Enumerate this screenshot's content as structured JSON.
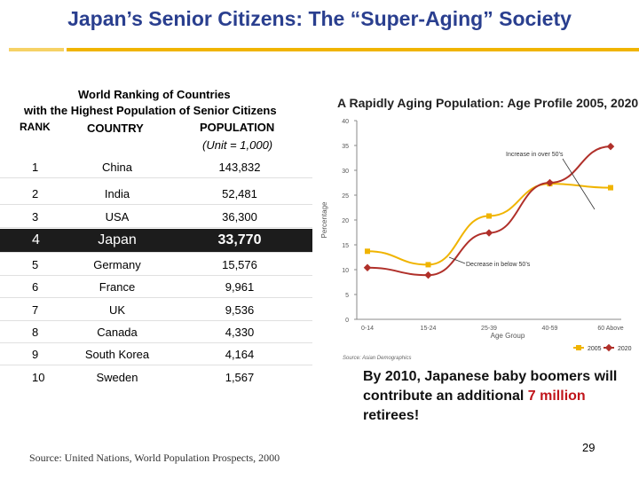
{
  "title": "Japan’s Senior Citizens: The “Super-Aging” Society",
  "ranking": {
    "heading_line1": "World Ranking of Countries",
    "heading_line2": "with the Highest Population of Senior Citizens",
    "col_rank": "RANK",
    "col_country": "COUNTRY",
    "col_population": "POPULATION",
    "unit": "(Unit = 1,000)",
    "rows": [
      {
        "rank": "1",
        "country": "China",
        "population": "143,832"
      },
      {
        "rank": "2",
        "country": "India",
        "population": "52,481"
      },
      {
        "rank": "3",
        "country": "USA",
        "population": "36,300"
      },
      {
        "rank": "4",
        "country": "Japan",
        "population": "33,770"
      },
      {
        "rank": "5",
        "country": "Germany",
        "population": "15,576"
      },
      {
        "rank": "6",
        "country": "France",
        "population": "9,961"
      },
      {
        "rank": "7",
        "country": "UK",
        "population": "9,536"
      },
      {
        "rank": "8",
        "country": "Canada",
        "population": "4,330"
      },
      {
        "rank": "9",
        "country": "South Korea",
        "population": "4,164"
      },
      {
        "rank": "10",
        "country": "Sweden",
        "population": "1,567"
      }
    ],
    "source": "Source: United Nations, World Population Prospects, 2000"
  },
  "chart_data": {
    "type": "line",
    "title": "A Rapidly Aging Population: Age Profile 2005, 2020",
    "xlabel": "Age Group",
    "ylabel": "Percentage",
    "categories": [
      "0-14",
      "15-24",
      "25-39",
      "40-59",
      "60 Above"
    ],
    "ylim": [
      0,
      40
    ],
    "yticks": [
      "0",
      "5",
      "10",
      "15",
      "20",
      "25",
      "30",
      "35",
      "40"
    ],
    "series": [
      {
        "name": "2005",
        "color": "#f0b400",
        "values": [
          13.7,
          11.0,
          20.8,
          27.3,
          26.5
        ]
      },
      {
        "name": "2020",
        "color": "#b0302a",
        "values": [
          10.4,
          8.9,
          17.4,
          27.5,
          34.8
        ]
      }
    ],
    "annotations": [
      "Increase in over 50’s",
      "Decrease in below 50’s"
    ],
    "source": "Source: Asian Demographics",
    "legend": "bottom-right",
    "grid": false
  },
  "caption": {
    "part1": "By 2010, Japanese baby boomers will contribute an additional ",
    "highlight": "7 million",
    "part2": " retirees!"
  },
  "page_number": "29",
  "colors": {
    "title": "#2a3f8f",
    "rule": "#f0b400",
    "highlight_row": "#1c1c1c",
    "accent_red": "#c0141a"
  }
}
